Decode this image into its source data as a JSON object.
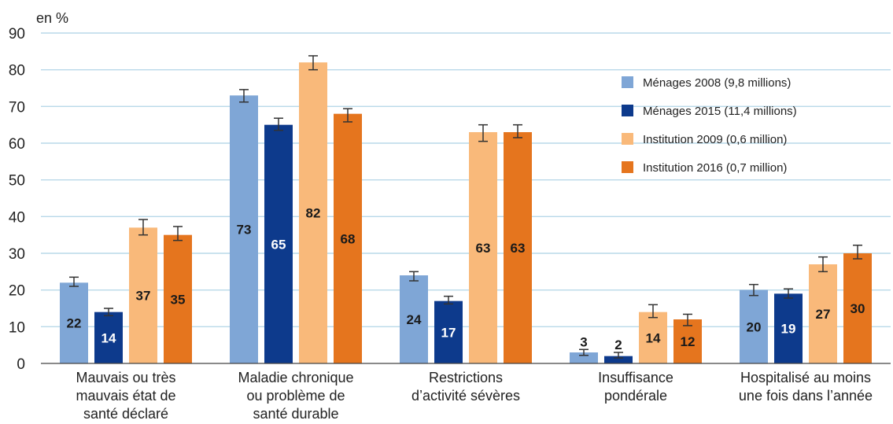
{
  "chart_data": {
    "type": "bar",
    "unit_label": "en %",
    "ylim": [
      0,
      90
    ],
    "yticks": [
      "0",
      "10",
      "20",
      "30",
      "40",
      "50",
      "60",
      "70",
      "80",
      "90"
    ],
    "grid": true,
    "legend_position": "top-right",
    "categories": [
      [
        "Mauvais ou très",
        "mauvais état de",
        "santé déclaré"
      ],
      [
        "Maladie chronique",
        "ou problème de",
        "santé durable"
      ],
      [
        "Restrictions",
        "d’activité sévères"
      ],
      [
        "Insuffisance",
        "pondérale"
      ],
      [
        "Hospitalisé au moins",
        "une fois dans l’année"
      ]
    ],
    "series": [
      {
        "name": "Ménages 2008 (9,8 millions)",
        "color": "#7fa6d6",
        "label_color": "#1a1a1a",
        "values": [
          22,
          73,
          24,
          3,
          20
        ],
        "labels": [
          "22",
          "73",
          "24",
          "3",
          "20"
        ],
        "error": [
          [
            21,
            23.5
          ],
          [
            71.2,
            74.6
          ],
          [
            22.5,
            25
          ],
          [
            2.2,
            3.8
          ],
          [
            18.5,
            21.5
          ]
        ]
      },
      {
        "name": "Ménages 2015 (11,4 millions)",
        "color": "#0d3a8c",
        "label_color": "#ffffff",
        "values": [
          14,
          65,
          17,
          2,
          19
        ],
        "labels": [
          "14",
          "65",
          "17",
          "2",
          "19"
        ],
        "error": [
          [
            13,
            15
          ],
          [
            63.5,
            66.8
          ],
          [
            16.2,
            18.3
          ],
          [
            1.5,
            3
          ],
          [
            17.8,
            20.3
          ]
        ]
      },
      {
        "name": "Institution 2009 (0,6 million)",
        "color": "#f9b97a",
        "label_color": "#1a1a1a",
        "values": [
          37,
          82,
          63,
          14,
          27
        ],
        "labels": [
          "37",
          "82",
          "63",
          "14",
          "27"
        ],
        "error": [
          [
            35,
            39.2
          ],
          [
            80,
            83.8
          ],
          [
            60.5,
            65
          ],
          [
            12.5,
            16
          ],
          [
            25,
            29
          ]
        ]
      },
      {
        "name": "Institution 2016 (0,7 million)",
        "color": "#e5751e",
        "label_color": "#1a1a1a",
        "values": [
          35,
          68,
          63,
          12,
          30
        ],
        "labels": [
          "35",
          "68",
          "63",
          "12",
          "30"
        ],
        "error": [
          [
            33.5,
            37.3
          ],
          [
            65.8,
            69.4
          ],
          [
            61.5,
            65
          ],
          [
            10.3,
            13.4
          ],
          [
            28.5,
            32.2
          ]
        ]
      }
    ]
  }
}
